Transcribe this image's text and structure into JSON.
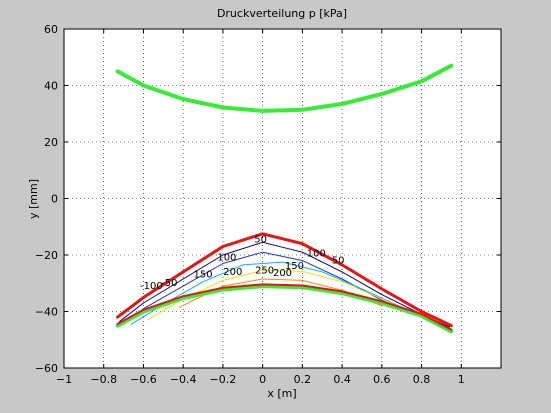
{
  "chart_data": {
    "type": "line",
    "title": "Druckverteilung    p [kPa]",
    "xlabel": "x   [m]",
    "ylabel": "y   [mm]",
    "xlim": [
      -1,
      1.2
    ],
    "ylim": [
      -60,
      60
    ],
    "xticks": [
      -1,
      -0.8,
      -0.6,
      -0.4,
      -0.2,
      0,
      0.2,
      0.4,
      0.6,
      0.8,
      1
    ],
    "xtick_labels": [
      "−1",
      "−0.8",
      "−0.6",
      "−0.4",
      "−0.2",
      "0",
      "0.2",
      "0.4",
      "0.6",
      "0.8",
      "1"
    ],
    "yticks": [
      -60,
      -40,
      -20,
      0,
      20,
      40,
      60
    ],
    "ytick_labels": [
      "−60",
      "−40",
      "−20",
      "0",
      "20",
      "40",
      "60"
    ],
    "grid": true,
    "colors": {
      "background": "#c8c8c8",
      "axes": "#ffffff",
      "green": "#33ee33",
      "red": "#ee1111",
      "blue": "#000090",
      "cyan": "#00b8ff",
      "yellow": "#e8e800",
      "orange": "#ff8a00"
    },
    "series": [
      {
        "x": [
          -0.73,
          -0.6,
          -0.4,
          -0.2,
          0,
          0.2,
          0.4,
          0.6,
          0.8,
          0.95
        ],
        "y": [
          45,
          40,
          35.2,
          32.2,
          31,
          31.4,
          33.5,
          37,
          41.5,
          47
        ],
        "color": "#33ee33",
        "width": 4
      },
      {
        "x": [
          -0.73,
          -0.6,
          -0.4,
          -0.2,
          0,
          0.2,
          0.4,
          0.6,
          0.8,
          0.95
        ],
        "y": [
          -42,
          -35,
          -26,
          -17,
          -12.5,
          -16,
          -23.5,
          -32,
          -40,
          -45
        ],
        "color": "#ee1111",
        "width": 3
      },
      {
        "x": [
          -0.72,
          -0.6,
          -0.4,
          -0.2,
          0,
          0.2,
          0.4,
          0.6,
          0.8,
          0.94
        ],
        "y": [
          -43.5,
          -37,
          -28.5,
          -20,
          -15.5,
          -19,
          -26,
          -34,
          -41,
          -45.5
        ],
        "color": "#000090",
        "width": 1
      },
      {
        "x": [
          -0.7,
          -0.6,
          -0.4,
          -0.2,
          0,
          0.2,
          0.4,
          0.6,
          0.8,
          0.92
        ],
        "y": [
          -44.5,
          -39,
          -31,
          -23,
          -19,
          -22,
          -28.5,
          -36,
          -42,
          -46
        ],
        "color": "#2030d0",
        "width": 1
      },
      {
        "x": [
          -0.66,
          -0.5,
          -0.3,
          -0.1,
          0.1,
          0.3,
          0.5,
          0.7,
          0.88
        ],
        "y": [
          -44.5,
          -37.5,
          -29.5,
          -23.5,
          -22.5,
          -26,
          -32,
          -38.5,
          -45
        ],
        "color": "#00b8ff",
        "width": 1
      },
      {
        "x": [
          -0.58,
          -0.4,
          -0.2,
          0,
          0.2,
          0.4,
          0.6,
          0.8
        ],
        "y": [
          -43,
          -35.5,
          -29,
          -25.5,
          -25.8,
          -29.5,
          -35.5,
          -42
        ],
        "color": "#e8e800",
        "width": 1
      },
      {
        "x": [
          -0.42,
          -0.2,
          0,
          0.2,
          0.4,
          0.6
        ],
        "y": [
          -38.5,
          -31,
          -28.5,
          -29,
          -32.5,
          -38
        ],
        "color": "#ff8a00",
        "width": 1
      },
      {
        "x": [
          -0.73,
          -0.6,
          -0.4,
          -0.2,
          0,
          0.2,
          0.4,
          0.6,
          0.8,
          0.95
        ],
        "y": [
          -45,
          -40,
          -35.2,
          -32.2,
          -31,
          -31.4,
          -33.5,
          -37,
          -41.5,
          -47
        ],
        "color": "#33ee33",
        "width": 4
      },
      {
        "x": [
          -0.73,
          -0.6,
          -0.4,
          -0.2,
          0,
          0.2,
          0.4,
          0.6,
          0.8,
          0.95
        ],
        "y": [
          -44.4,
          -39.4,
          -34.6,
          -31.6,
          -30.4,
          -30.8,
          -32.9,
          -36.4,
          -40.9,
          -46.4
        ],
        "color": "#ee1111",
        "width": 2
      }
    ],
    "annotations": [
      {
        "text": "50",
        "x": -0.01,
        "y": -15.5,
        "color": "#000000"
      },
      {
        "text": "100",
        "x": -0.18,
        "y": -22,
        "color": "#000000"
      },
      {
        "text": "100",
        "x": 0.27,
        "y": -20.5,
        "color": "#000000"
      },
      {
        "text": "150",
        "x": -0.3,
        "y": -28,
        "color": "#000000"
      },
      {
        "text": "150",
        "x": 0.16,
        "y": -25,
        "color": "#000000"
      },
      {
        "text": "200",
        "x": -0.15,
        "y": -27,
        "color": "#000000"
      },
      {
        "text": "200",
        "x": 0.1,
        "y": -27.5,
        "color": "#000000"
      },
      {
        "text": "250",
        "x": 0.01,
        "y": -26.5,
        "color": "#000000"
      },
      {
        "text": "50",
        "x": 0.38,
        "y": -23,
        "color": "#000000"
      },
      {
        "text": "-50",
        "x": -0.47,
        "y": -31,
        "color": "#000000"
      },
      {
        "text": "-100",
        "x": -0.56,
        "y": -32,
        "color": "#000000"
      }
    ]
  }
}
